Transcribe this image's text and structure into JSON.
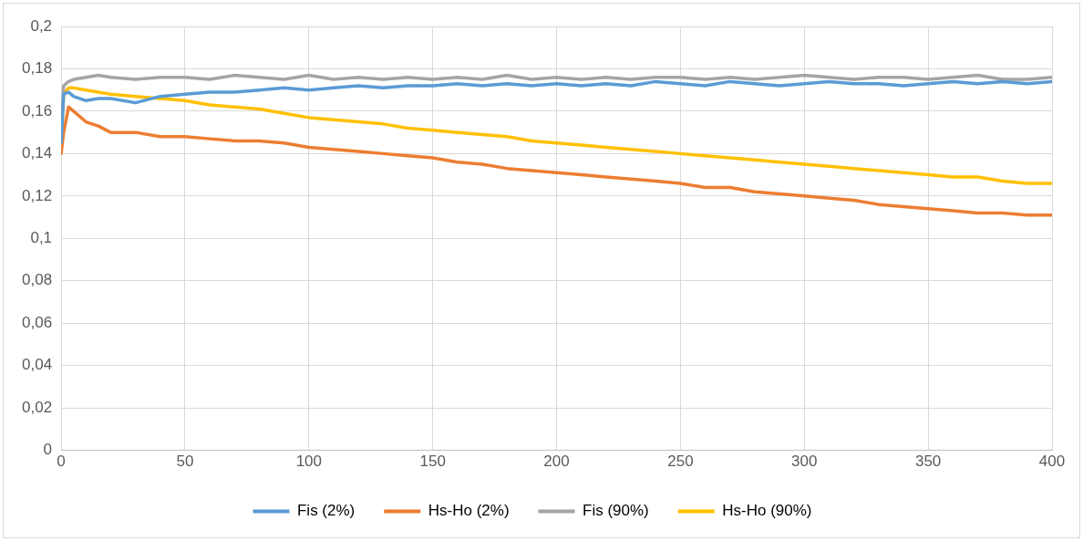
{
  "chart_data": {
    "type": "line",
    "x": [
      0,
      1,
      3,
      5,
      10,
      15,
      20,
      30,
      40,
      50,
      60,
      70,
      80,
      90,
      100,
      110,
      120,
      130,
      140,
      150,
      160,
      170,
      180,
      190,
      200,
      210,
      220,
      230,
      240,
      250,
      260,
      270,
      280,
      290,
      300,
      310,
      320,
      330,
      340,
      350,
      360,
      370,
      380,
      390,
      400
    ],
    "series": [
      {
        "name": "Fis (2%)",
        "color": "#5b9bd5",
        "values": [
          0.145,
          0.168,
          0.169,
          0.167,
          0.165,
          0.166,
          0.166,
          0.164,
          0.167,
          0.168,
          0.169,
          0.169,
          0.17,
          0.171,
          0.17,
          0.171,
          0.172,
          0.171,
          0.172,
          0.172,
          0.173,
          0.172,
          0.173,
          0.172,
          0.173,
          0.172,
          0.173,
          0.172,
          0.174,
          0.173,
          0.172,
          0.174,
          0.173,
          0.172,
          0.173,
          0.174,
          0.173,
          0.173,
          0.172,
          0.173,
          0.174,
          0.173,
          0.174,
          0.173,
          0.174
        ]
      },
      {
        "name": "Hs-Ho (2%)",
        "color": "#ed7d31",
        "values": [
          0.14,
          0.15,
          0.162,
          0.16,
          0.155,
          0.153,
          0.15,
          0.15,
          0.148,
          0.148,
          0.147,
          0.146,
          0.146,
          0.145,
          0.143,
          0.142,
          0.141,
          0.14,
          0.139,
          0.138,
          0.136,
          0.135,
          0.133,
          0.132,
          0.131,
          0.13,
          0.129,
          0.128,
          0.127,
          0.126,
          0.124,
          0.124,
          0.122,
          0.121,
          0.12,
          0.119,
          0.118,
          0.116,
          0.115,
          0.114,
          0.113,
          0.112,
          0.112,
          0.111,
          0.111
        ]
      },
      {
        "name": "Fis (90%)",
        "color": "#a5a5a5",
        "values": [
          0.15,
          0.172,
          0.174,
          0.175,
          0.176,
          0.177,
          0.176,
          0.175,
          0.176,
          0.176,
          0.175,
          0.177,
          0.176,
          0.175,
          0.177,
          0.175,
          0.176,
          0.175,
          0.176,
          0.175,
          0.176,
          0.175,
          0.177,
          0.175,
          0.176,
          0.175,
          0.176,
          0.175,
          0.176,
          0.176,
          0.175,
          0.176,
          0.175,
          0.176,
          0.177,
          0.176,
          0.175,
          0.176,
          0.176,
          0.175,
          0.176,
          0.177,
          0.175,
          0.175,
          0.176
        ]
      },
      {
        "name": "Hs-Ho (90%)",
        "color": "#ffc000",
        "values": [
          0.145,
          0.168,
          0.171,
          0.171,
          0.17,
          0.169,
          0.168,
          0.167,
          0.166,
          0.165,
          0.163,
          0.162,
          0.161,
          0.159,
          0.157,
          0.156,
          0.155,
          0.154,
          0.152,
          0.151,
          0.15,
          0.149,
          0.148,
          0.146,
          0.145,
          0.144,
          0.143,
          0.142,
          0.141,
          0.14,
          0.139,
          0.138,
          0.137,
          0.136,
          0.135,
          0.134,
          0.133,
          0.132,
          0.131,
          0.13,
          0.129,
          0.129,
          0.127,
          0.126,
          0.126
        ]
      }
    ],
    "xlim": [
      0,
      400
    ],
    "xticks": [
      0,
      50,
      100,
      150,
      200,
      250,
      300,
      350,
      400
    ],
    "ylim": [
      0,
      0.2
    ],
    "yticks": [
      {
        "value": 0,
        "label": "0"
      },
      {
        "value": 0.02,
        "label": "0,02"
      },
      {
        "value": 0.04,
        "label": "0,04"
      },
      {
        "value": 0.06,
        "label": "0,06"
      },
      {
        "value": 0.08,
        "label": "0,08"
      },
      {
        "value": 0.1,
        "label": "0,1"
      },
      {
        "value": 0.12,
        "label": "0,12"
      },
      {
        "value": 0.14,
        "label": "0,14"
      },
      {
        "value": 0.16,
        "label": "0,16"
      },
      {
        "value": 0.18,
        "label": "0,18"
      },
      {
        "value": 0.2,
        "label": "0,2"
      }
    ],
    "grid": true,
    "legend": "bottom",
    "marker": "none",
    "line_style": "solid"
  }
}
